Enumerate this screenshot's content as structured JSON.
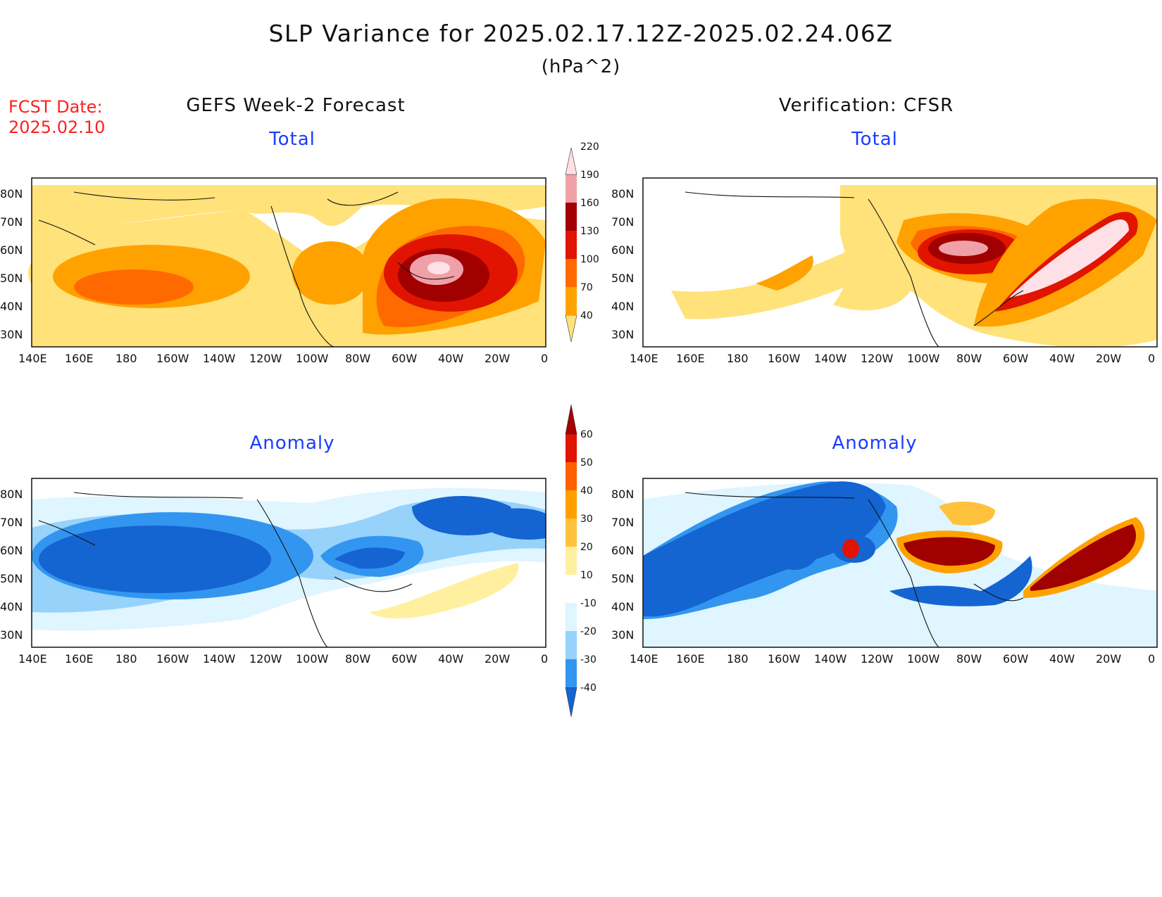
{
  "header": {
    "title": "SLP Variance for 2025.02.17.12Z-2025.02.24.06Z",
    "units": "(hPa^2)",
    "fcst_label": "FCST Date:",
    "fcst_date": "2025.02.10"
  },
  "columns": {
    "left": "GEFS Week-2 Forecast",
    "right": "Verification: CFSR"
  },
  "panels": {
    "top_left": "Total",
    "top_right": "Total",
    "bottom_left": "Anomaly",
    "bottom_right": "Anomaly"
  },
  "axes": {
    "lon_ticks": [
      "140E",
      "160E",
      "180",
      "160W",
      "140W",
      "120W",
      "100W",
      "80W",
      "60W",
      "40W",
      "20W",
      "0"
    ],
    "lat_ticks": [
      "80N",
      "70N",
      "60N",
      "50N",
      "40N",
      "30N"
    ]
  },
  "colorbars": {
    "total": {
      "levels": [
        "40",
        "70",
        "100",
        "130",
        "160",
        "190",
        "220"
      ],
      "colors": [
        "#ffe27a",
        "#ffa200",
        "#ff6a00",
        "#e01400",
        "#a00000",
        "#f0a0a8",
        "#ffe0e6"
      ]
    },
    "anomaly": {
      "levels": [
        "-40",
        "-30",
        "-20",
        "-10",
        "10",
        "20",
        "30",
        "40",
        "50",
        "60"
      ],
      "colors": [
        "#1464d2",
        "#3296f0",
        "#96d2fa",
        "#dff5ff",
        "#ffffff",
        "#fff0a0",
        "#ffc23c",
        "#ffa000",
        "#ff6000",
        "#e01400",
        "#a50000"
      ]
    }
  }
}
